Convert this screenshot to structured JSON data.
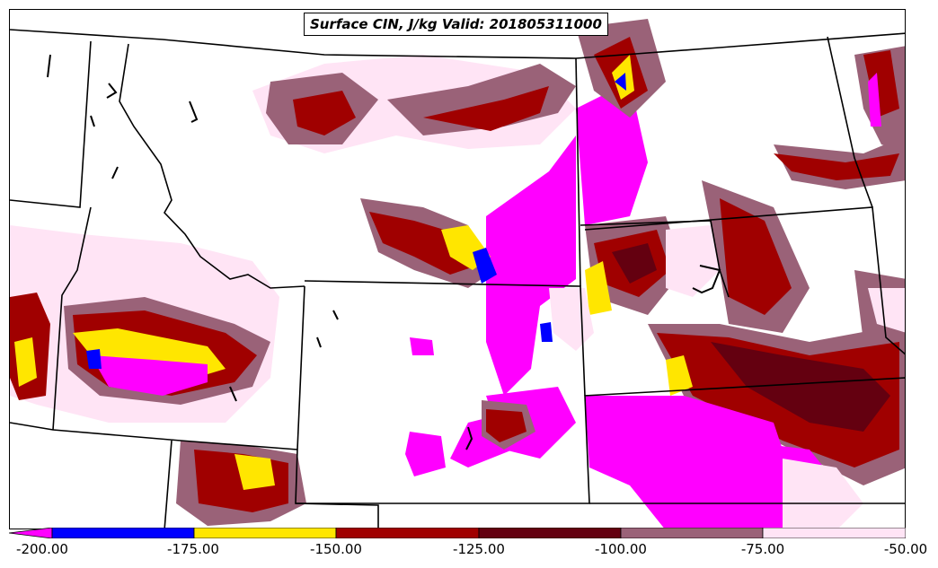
{
  "title": "Surface CIN, J/kg Valid: 201805311000",
  "legend": {
    "labels": [
      "-200.00",
      "-175.00",
      "-150.00",
      "-125.00",
      "-100.00",
      "-75.00",
      "-50.00"
    ],
    "bins": [
      {
        "range": "-200 to -175",
        "color": "#0000ff"
      },
      {
        "range": "-175 to -150",
        "color": "#ffe600"
      },
      {
        "range": "-150 to -125",
        "color": "#a00000"
      },
      {
        "range": "-125 to -100",
        "color": "#640010"
      },
      {
        "range": "-100 to -75",
        "color": "#9a6278"
      },
      {
        "range": "-75 to -50",
        "color": "#ffe4f5"
      }
    ],
    "below_min_color": "#ff00ff"
  },
  "fill_colors": {
    "magenta": "#ff00ff",
    "blue": "#0000ff",
    "yellow": "#ffe600",
    "red": "#a00000",
    "dark_red": "#640010",
    "mauve": "#9a6278",
    "pink": "#ffe4f5"
  }
}
